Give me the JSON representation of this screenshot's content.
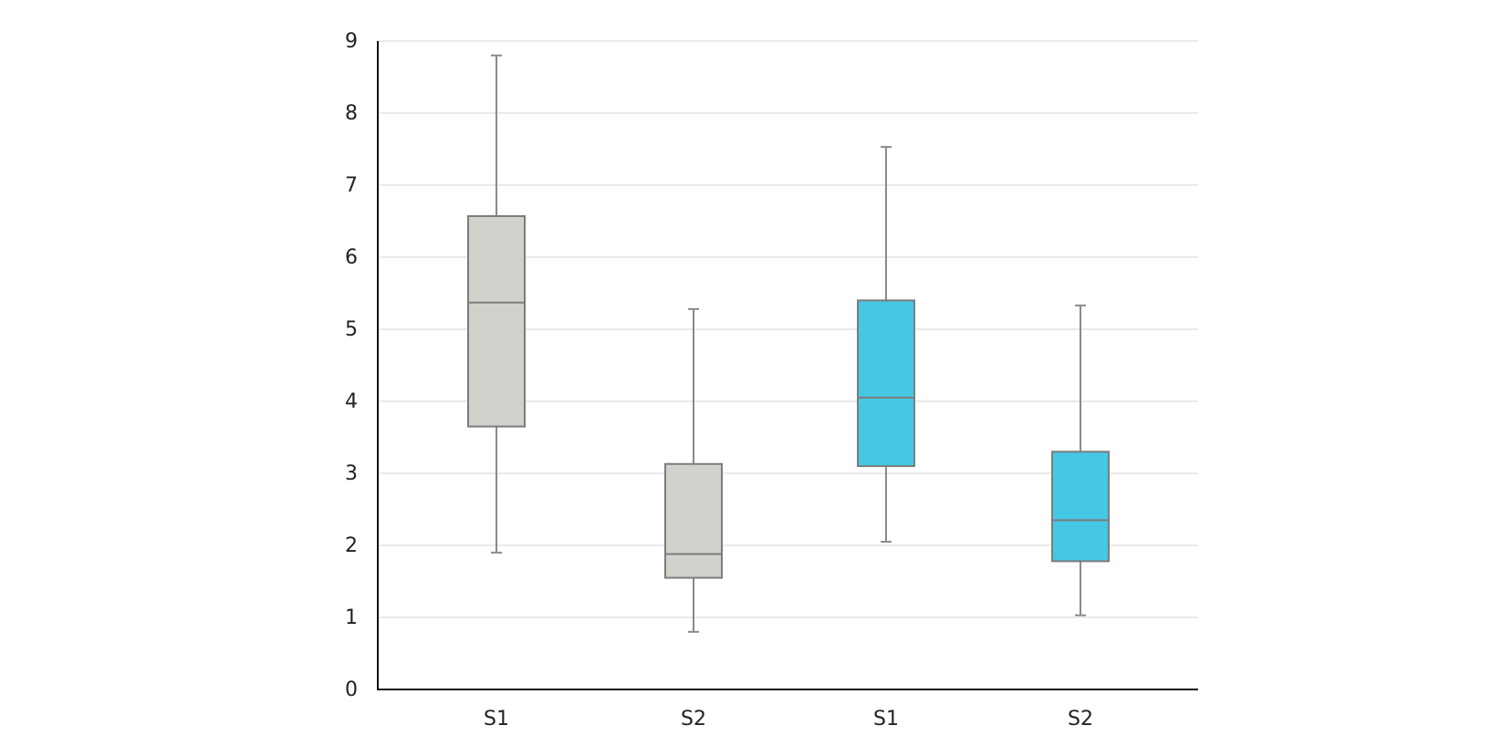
{
  "chart_data": {
    "type": "boxplot",
    "title": "",
    "xlabel": "",
    "ylabel": "",
    "ylim": [
      0,
      9
    ],
    "y_ticks": [
      "0",
      "1",
      "2",
      "3",
      "4",
      "5",
      "6",
      "7",
      "8",
      "9"
    ],
    "grid": true,
    "legend": "none",
    "categories": [
      "S1",
      "S2",
      "S1",
      "S2"
    ],
    "boxes": [
      {
        "label": "S1",
        "min": 1.9,
        "q1": 3.65,
        "median": 5.37,
        "q3": 6.57,
        "max": 8.8,
        "color": "#d3d1cc"
      },
      {
        "label": "S2",
        "min": 0.8,
        "q1": 1.55,
        "median": 1.88,
        "q3": 3.13,
        "max": 5.28,
        "color": "#d3d1cc"
      },
      {
        "label": "S1",
        "min": 2.05,
        "q1": 3.1,
        "median": 4.05,
        "q3": 5.4,
        "max": 7.53,
        "color": "#45c8e3"
      },
      {
        "label": "S2",
        "min": 1.03,
        "q1": 1.78,
        "median": 2.35,
        "q3": 3.3,
        "max": 5.33,
        "color": "#45c8e3"
      }
    ],
    "colors": {
      "grid": "#e3e3e3",
      "axis": "#111111",
      "box_stroke": "#7c7c7c",
      "whisker": "#8a8a8a"
    }
  }
}
